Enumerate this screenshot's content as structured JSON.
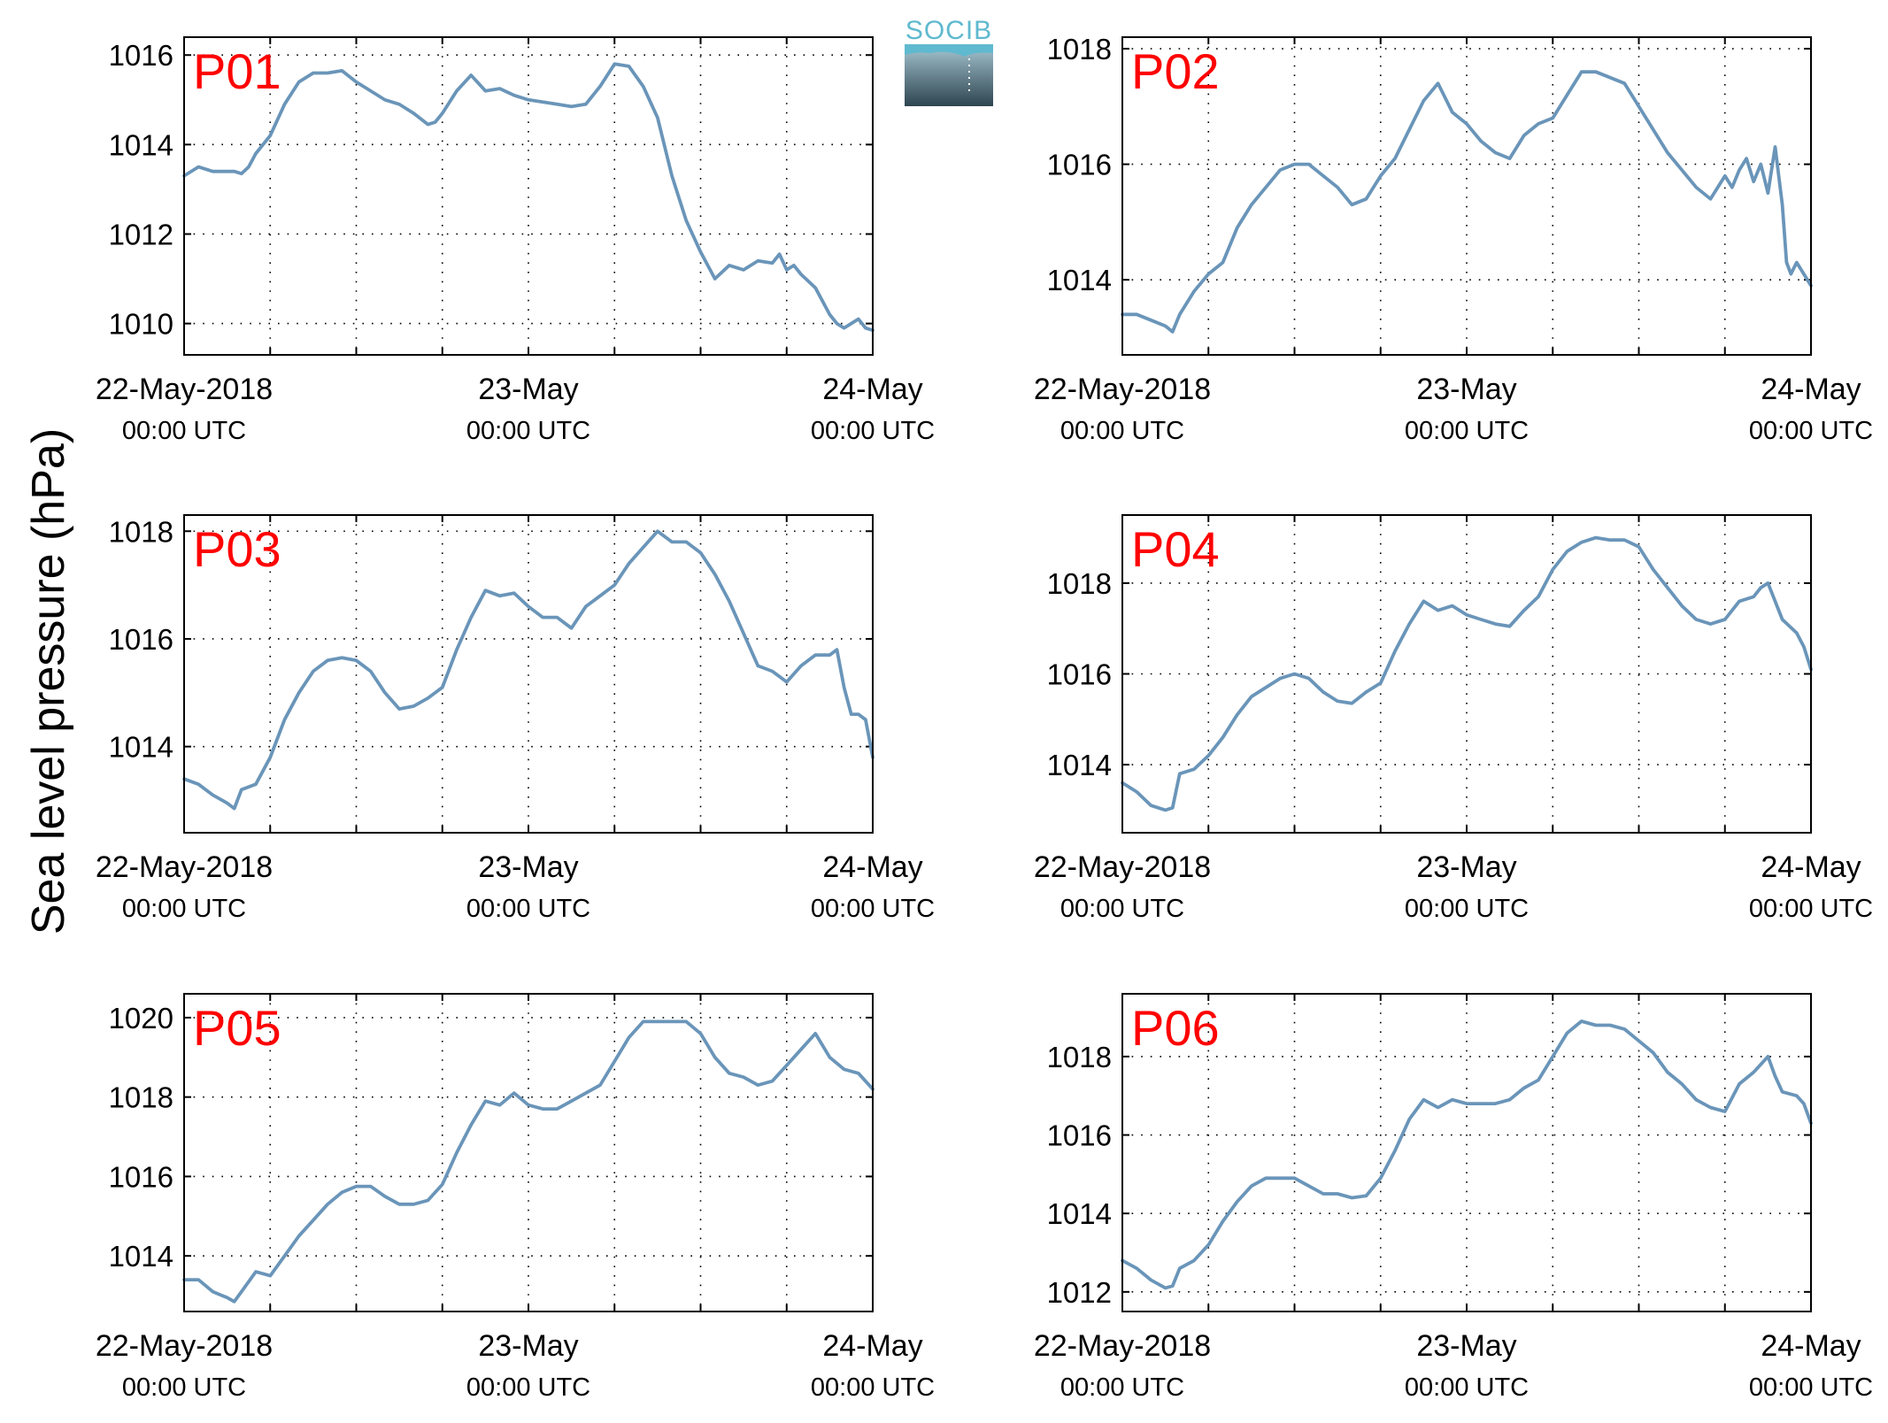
{
  "figure": {
    "ylabel": "Sea level pressure (hPa)",
    "logo_text": "SOCIB",
    "colors": {
      "series": "#6a95b9",
      "panel_label": "#ff0000",
      "logo": "#5fb9cf"
    }
  },
  "chart_data": [
    {
      "type": "line",
      "label": "P01",
      "xlim": [
        0,
        48
      ],
      "ylim": [
        1009.3,
        1016.4
      ],
      "yticks": [
        1010,
        1012,
        1014,
        1016
      ],
      "xticks": [
        {
          "date": "22-May-2018",
          "time": "00:00 UTC"
        },
        {
          "date": "23-May",
          "time": "00:00 UTC"
        },
        {
          "date": "24-May",
          "time": "00:00 UTC"
        }
      ],
      "x_hours": [
        0,
        1,
        2,
        3,
        3.5,
        4,
        4.5,
        5,
        6,
        7,
        8,
        9,
        10,
        11,
        12,
        13,
        14,
        15,
        16,
        17,
        17.5,
        18,
        19,
        20,
        21,
        22,
        23,
        24,
        25,
        26,
        27,
        28,
        29,
        30,
        31,
        32,
        33,
        34,
        35,
        36,
        37,
        38,
        39,
        40,
        41,
        41.5,
        42,
        42.5,
        43,
        44,
        45,
        45.5,
        46,
        46.5,
        47,
        47.5,
        48
      ],
      "values": [
        1013.3,
        1013.5,
        1013.4,
        1013.4,
        1013.4,
        1013.35,
        1013.5,
        1013.8,
        1014.2,
        1014.9,
        1015.4,
        1015.6,
        1015.6,
        1015.65,
        1015.4,
        1015.2,
        1015.0,
        1014.9,
        1014.7,
        1014.45,
        1014.5,
        1014.7,
        1015.2,
        1015.55,
        1015.2,
        1015.25,
        1015.1,
        1015.0,
        1014.95,
        1014.9,
        1014.85,
        1014.9,
        1015.3,
        1015.8,
        1015.75,
        1015.3,
        1014.6,
        1013.3,
        1012.3,
        1011.6,
        1011.0,
        1011.3,
        1011.2,
        1011.4,
        1011.35,
        1011.55,
        1011.2,
        1011.3,
        1011.1,
        1010.8,
        1010.2,
        1010.0,
        1009.9,
        1010.0,
        1010.1,
        1009.9,
        1009.85
      ]
    },
    {
      "type": "line",
      "label": "P02",
      "xlim": [
        0,
        48
      ],
      "ylim": [
        1012.7,
        1018.2
      ],
      "yticks": [
        1014,
        1016,
        1018
      ],
      "xticks": [
        {
          "date": "22-May-2018",
          "time": "00:00 UTC"
        },
        {
          "date": "23-May",
          "time": "00:00 UTC"
        },
        {
          "date": "24-May",
          "time": "00:00 UTC"
        }
      ],
      "x_hours": [
        0,
        1,
        2,
        3,
        3.5,
        4,
        5,
        6,
        7,
        8,
        9,
        10,
        11,
        12,
        13,
        14,
        15,
        16,
        17,
        18,
        19,
        20,
        21,
        22,
        23,
        24,
        25,
        26,
        27,
        28,
        29,
        30,
        31,
        32,
        33,
        34,
        35,
        36,
        37,
        38,
        39,
        40,
        41,
        42,
        42.5,
        43,
        43.5,
        44,
        44.5,
        45,
        45.5,
        46,
        46.3,
        46.6,
        47,
        47.5,
        48
      ],
      "values": [
        1013.4,
        1013.4,
        1013.3,
        1013.2,
        1013.1,
        1013.4,
        1013.8,
        1014.1,
        1014.3,
        1014.9,
        1015.3,
        1015.6,
        1015.9,
        1016.0,
        1016.0,
        1015.8,
        1015.6,
        1015.3,
        1015.4,
        1015.8,
        1016.1,
        1016.6,
        1017.1,
        1017.4,
        1016.9,
        1016.7,
        1016.4,
        1016.2,
        1016.1,
        1016.5,
        1016.7,
        1016.8,
        1017.2,
        1017.6,
        1017.6,
        1017.5,
        1017.4,
        1017.0,
        1016.6,
        1016.2,
        1015.9,
        1015.6,
        1015.4,
        1015.8,
        1015.6,
        1015.9,
        1016.1,
        1015.7,
        1016.0,
        1015.5,
        1016.3,
        1015.3,
        1014.3,
        1014.1,
        1014.3,
        1014.1,
        1013.9
      ]
    },
    {
      "type": "line",
      "label": "P03",
      "xlim": [
        0,
        48
      ],
      "ylim": [
        1012.4,
        1018.3
      ],
      "yticks": [
        1014,
        1016,
        1018
      ],
      "xticks": [
        {
          "date": "22-May-2018",
          "time": "00:00 UTC"
        },
        {
          "date": "23-May",
          "time": "00:00 UTC"
        },
        {
          "date": "24-May",
          "time": "00:00 UTC"
        }
      ],
      "x_hours": [
        0,
        1,
        2,
        3,
        3.5,
        4,
        5,
        6,
        7,
        8,
        9,
        10,
        11,
        12,
        13,
        14,
        15,
        16,
        17,
        18,
        19,
        20,
        21,
        22,
        23,
        24,
        25,
        26,
        27,
        28,
        29,
        30,
        31,
        32,
        33,
        34,
        35,
        36,
        37,
        38,
        39,
        40,
        41,
        42,
        43,
        44,
        45,
        45.5,
        46,
        46.5,
        47,
        47.5,
        48
      ],
      "values": [
        1013.4,
        1013.3,
        1013.1,
        1012.95,
        1012.85,
        1013.2,
        1013.3,
        1013.8,
        1014.5,
        1015.0,
        1015.4,
        1015.6,
        1015.65,
        1015.6,
        1015.4,
        1015.0,
        1014.7,
        1014.75,
        1014.9,
        1015.1,
        1015.8,
        1016.4,
        1016.9,
        1016.8,
        1016.85,
        1016.6,
        1016.4,
        1016.4,
        1016.2,
        1016.6,
        1016.8,
        1017.0,
        1017.4,
        1017.7,
        1018.0,
        1017.8,
        1017.8,
        1017.6,
        1017.2,
        1016.7,
        1016.1,
        1015.5,
        1015.4,
        1015.2,
        1015.5,
        1015.7,
        1015.7,
        1015.8,
        1015.1,
        1014.6,
        1014.6,
        1014.5,
        1013.8
      ]
    },
    {
      "type": "line",
      "label": "P04",
      "xlim": [
        0,
        48
      ],
      "ylim": [
        1012.5,
        1019.5
      ],
      "yticks": [
        1014,
        1016,
        1018
      ],
      "xticks": [
        {
          "date": "22-May-2018",
          "time": "00:00 UTC"
        },
        {
          "date": "23-May",
          "time": "00:00 UTC"
        },
        {
          "date": "24-May",
          "time": "00:00 UTC"
        }
      ],
      "x_hours": [
        0,
        1,
        2,
        3,
        3.5,
        4,
        5,
        6,
        7,
        8,
        9,
        10,
        11,
        12,
        13,
        14,
        15,
        16,
        17,
        18,
        19,
        20,
        21,
        22,
        23,
        24,
        25,
        26,
        27,
        28,
        29,
        30,
        31,
        32,
        33,
        34,
        35,
        36,
        37,
        38,
        39,
        40,
        41,
        42,
        43,
        44,
        44.5,
        45,
        45.5,
        46,
        47,
        47.5,
        48
      ],
      "values": [
        1013.6,
        1013.4,
        1013.1,
        1013.0,
        1013.05,
        1013.8,
        1013.9,
        1014.2,
        1014.6,
        1015.1,
        1015.5,
        1015.7,
        1015.9,
        1016.0,
        1015.9,
        1015.6,
        1015.4,
        1015.35,
        1015.6,
        1015.8,
        1016.5,
        1017.1,
        1017.6,
        1017.4,
        1017.5,
        1017.3,
        1017.2,
        1017.1,
        1017.05,
        1017.4,
        1017.7,
        1018.3,
        1018.7,
        1018.9,
        1019.0,
        1018.95,
        1018.95,
        1018.8,
        1018.3,
        1017.9,
        1017.5,
        1017.2,
        1017.1,
        1017.2,
        1017.6,
        1017.7,
        1017.9,
        1018.0,
        1017.6,
        1017.2,
        1016.9,
        1016.6,
        1016.1
      ]
    },
    {
      "type": "line",
      "label": "P05",
      "xlim": [
        0,
        48
      ],
      "ylim": [
        1012.6,
        1020.6
      ],
      "yticks": [
        1014,
        1016,
        1018,
        1020
      ],
      "xticks": [
        {
          "date": "22-May-2018",
          "time": "00:00 UTC"
        },
        {
          "date": "23-May",
          "time": "00:00 UTC"
        },
        {
          "date": "24-May",
          "time": "00:00 UTC"
        }
      ],
      "x_hours": [
        0,
        1,
        2,
        3,
        3.5,
        4,
        5,
        6,
        7,
        8,
        9,
        10,
        11,
        12,
        13,
        14,
        15,
        16,
        17,
        18,
        19,
        20,
        21,
        22,
        23,
        24,
        25,
        26,
        27,
        28,
        29,
        30,
        31,
        32,
        33,
        34,
        35,
        36,
        37,
        38,
        39,
        40,
        41,
        42,
        43,
        44,
        45,
        46,
        47,
        48
      ],
      "values": [
        1013.4,
        1013.4,
        1013.1,
        1012.95,
        1012.85,
        1013.1,
        1013.6,
        1013.5,
        1014.0,
        1014.5,
        1014.9,
        1015.3,
        1015.6,
        1015.75,
        1015.75,
        1015.5,
        1015.3,
        1015.3,
        1015.4,
        1015.8,
        1016.6,
        1017.3,
        1017.9,
        1017.8,
        1018.1,
        1017.8,
        1017.7,
        1017.7,
        1017.9,
        1018.1,
        1018.3,
        1018.9,
        1019.5,
        1019.9,
        1019.9,
        1019.9,
        1019.9,
        1019.6,
        1019.0,
        1018.6,
        1018.5,
        1018.3,
        1018.4,
        1018.8,
        1019.2,
        1019.6,
        1019.0,
        1018.7,
        1018.6,
        1018.2
      ]
    },
    {
      "type": "line",
      "label": "P06",
      "xlim": [
        0,
        48
      ],
      "ylim": [
        1011.5,
        1019.6
      ],
      "yticks": [
        1012,
        1014,
        1016,
        1018
      ],
      "xticks": [
        {
          "date": "22-May-2018",
          "time": "00:00 UTC"
        },
        {
          "date": "23-May",
          "time": "00:00 UTC"
        },
        {
          "date": "24-May",
          "time": "00:00 UTC"
        }
      ],
      "x_hours": [
        0,
        1,
        2,
        3,
        3.5,
        4,
        5,
        6,
        7,
        8,
        9,
        10,
        11,
        12,
        13,
        14,
        15,
        16,
        17,
        18,
        19,
        20,
        21,
        22,
        23,
        24,
        25,
        26,
        27,
        28,
        29,
        30,
        31,
        32,
        33,
        34,
        35,
        36,
        37,
        38,
        39,
        40,
        41,
        42,
        43,
        44,
        44.5,
        45,
        45.5,
        46,
        47,
        47.5,
        48
      ],
      "values": [
        1012.8,
        1012.6,
        1012.3,
        1012.1,
        1012.15,
        1012.6,
        1012.8,
        1013.2,
        1013.8,
        1014.3,
        1014.7,
        1014.9,
        1014.9,
        1014.9,
        1014.7,
        1014.5,
        1014.5,
        1014.4,
        1014.45,
        1014.9,
        1015.6,
        1016.4,
        1016.9,
        1016.7,
        1016.9,
        1016.8,
        1016.8,
        1016.8,
        1016.9,
        1017.2,
        1017.4,
        1018.0,
        1018.6,
        1018.9,
        1018.8,
        1018.8,
        1018.7,
        1018.4,
        1018.1,
        1017.6,
        1017.3,
        1016.9,
        1016.7,
        1016.6,
        1017.3,
        1017.6,
        1017.8,
        1018.0,
        1017.5,
        1017.1,
        1017.0,
        1016.8,
        1016.3
      ]
    }
  ]
}
